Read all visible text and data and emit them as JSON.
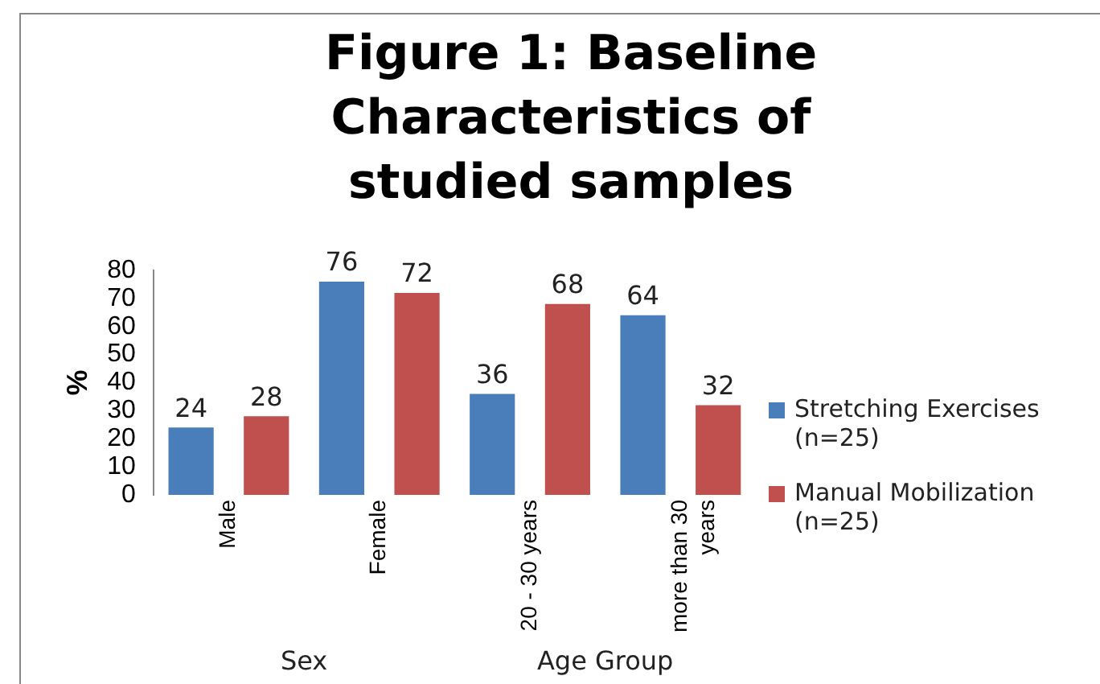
{
  "chart_data": {
    "type": "bar",
    "title": "Figure 1: Baseline Characteristics of studied samples",
    "ylabel": "%",
    "categories": [
      "Male",
      "Female",
      "20 - 30 years",
      "more than 30 years"
    ],
    "series": [
      {
        "name": "Stretching Exercises (n=25)",
        "color": "#4a7ebb",
        "values": [
          24,
          76,
          36,
          64
        ]
      },
      {
        "name": "Manual Mobilization (n=25)",
        "color": "#c0504d",
        "values": [
          28,
          72,
          68,
          32
        ]
      }
    ],
    "ylim": [
      0,
      80
    ],
    "yticks": [
      0,
      10,
      20,
      30,
      40,
      50,
      60,
      70,
      80
    ],
    "grid": false,
    "legend": "right",
    "data_labels": true,
    "annotations": [
      "Sex",
      "Age Group"
    ]
  }
}
